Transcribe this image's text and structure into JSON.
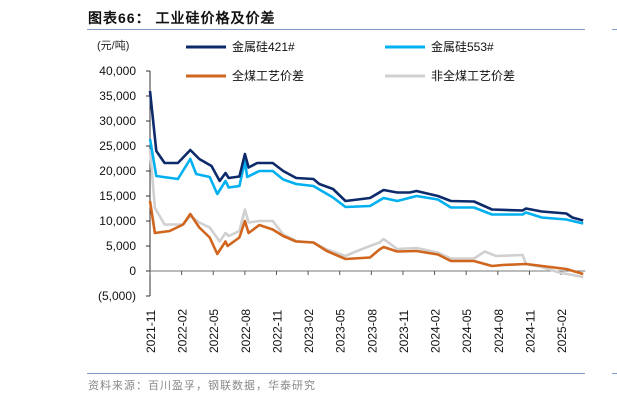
{
  "title": "图表66：  工业硅价格及价差",
  "source": "资料来源：百川盈孚，钢联数据，华泰研究",
  "chart_data": {
    "type": "line",
    "title": "工业硅价格及价差",
    "ylabel": "(元/吨)",
    "xlabel": "",
    "ylim": [
      -5000,
      40000
    ],
    "yticks": [
      -5000,
      0,
      5000,
      10000,
      15000,
      20000,
      25000,
      30000,
      35000,
      40000
    ],
    "ytick_labels": [
      "(5,000)",
      "0",
      "5,000",
      "10,000",
      "15,000",
      "20,000",
      "25,000",
      "30,000",
      "35,000",
      "40,000"
    ],
    "xlim": [
      "2021-11-01",
      "2025-04-10"
    ],
    "xtick_labels": [
      "2021-11",
      "2022-02",
      "2022-05",
      "2022-08",
      "2022-11",
      "2023-02",
      "2023-05",
      "2023-08",
      "2023-11",
      "2024-02",
      "2024-05",
      "2024-08",
      "2024-11",
      "2025-02"
    ],
    "grid": false,
    "legend": "top",
    "series": [
      {
        "name": "金属硅421#",
        "color": "#0d2a6b",
        "points": [
          [
            "2021-11-01",
            36000
          ],
          [
            "2021-11-19",
            24000
          ],
          [
            "2021-12-13",
            21600
          ],
          [
            "2022-01-21",
            21600
          ],
          [
            "2022-02-24",
            24200
          ],
          [
            "2022-03-22",
            22400
          ],
          [
            "2022-04-26",
            21000
          ],
          [
            "2022-05-20",
            18000
          ],
          [
            "2022-06-06",
            19600
          ],
          [
            "2022-06-15",
            18600
          ],
          [
            "2022-07-16",
            18900
          ],
          [
            "2022-08-01",
            23400
          ],
          [
            "2022-08-12",
            20700
          ],
          [
            "2022-09-06",
            21600
          ],
          [
            "2022-10-21",
            21600
          ],
          [
            "2022-11-20",
            20000
          ],
          [
            "2022-12-28",
            18600
          ],
          [
            "2023-02-15",
            18400
          ],
          [
            "2023-03-03",
            17400
          ],
          [
            "2023-04-12",
            16400
          ],
          [
            "2023-05-18",
            14000
          ],
          [
            "2023-07-28",
            14600
          ],
          [
            "2023-09-06",
            16200
          ],
          [
            "2023-10-15",
            15700
          ],
          [
            "2023-11-20",
            15700
          ],
          [
            "2023-12-10",
            16000
          ],
          [
            "2024-01-10",
            15500
          ],
          [
            "2024-02-10",
            15000
          ],
          [
            "2024-03-18",
            14000
          ],
          [
            "2024-05-24",
            13900
          ],
          [
            "2024-07-15",
            12300
          ],
          [
            "2024-10-12",
            12100
          ],
          [
            "2024-10-22",
            12500
          ],
          [
            "2024-12-06",
            11900
          ],
          [
            "2025-02-15",
            11500
          ],
          [
            "2025-03-03",
            10700
          ],
          [
            "2025-04-04",
            10100
          ]
        ]
      },
      {
        "name": "金属硅553#",
        "color": "#00b0f0",
        "points": [
          [
            "2021-11-01",
            26400
          ],
          [
            "2021-11-19",
            19000
          ],
          [
            "2022-01-21",
            18400
          ],
          [
            "2022-02-24",
            22400
          ],
          [
            "2022-03-13",
            19400
          ],
          [
            "2022-04-21",
            18800
          ],
          [
            "2022-05-13",
            15400
          ],
          [
            "2022-06-06",
            18000
          ],
          [
            "2022-06-15",
            16700
          ],
          [
            "2022-07-16",
            17000
          ],
          [
            "2022-08-01",
            22000
          ],
          [
            "2022-08-08",
            18800
          ],
          [
            "2022-09-12",
            20000
          ],
          [
            "2022-10-21",
            20000
          ],
          [
            "2022-11-20",
            18300
          ],
          [
            "2022-12-28",
            17400
          ],
          [
            "2023-02-15",
            17000
          ],
          [
            "2023-04-12",
            14700
          ],
          [
            "2023-05-18",
            12800
          ],
          [
            "2023-07-28",
            13000
          ],
          [
            "2023-09-06",
            14600
          ],
          [
            "2023-10-15",
            14000
          ],
          [
            "2023-12-10",
            15000
          ],
          [
            "2024-02-10",
            14300
          ],
          [
            "2024-03-18",
            12700
          ],
          [
            "2024-05-24",
            12700
          ],
          [
            "2024-07-15",
            11300
          ],
          [
            "2024-10-12",
            11300
          ],
          [
            "2024-10-22",
            11700
          ],
          [
            "2024-12-06",
            10700
          ],
          [
            "2025-02-15",
            10300
          ],
          [
            "2025-04-04",
            9500
          ]
        ]
      },
      {
        "name": "全煤工艺价差",
        "color": "#d0651d",
        "points": [
          [
            "2021-11-01",
            14000
          ],
          [
            "2021-11-15",
            7600
          ],
          [
            "2021-12-28",
            8000
          ],
          [
            "2022-02-05",
            9300
          ],
          [
            "2022-02-24",
            11400
          ],
          [
            "2022-03-22",
            8700
          ],
          [
            "2022-04-21",
            6700
          ],
          [
            "2022-05-13",
            3400
          ],
          [
            "2022-06-06",
            5900
          ],
          [
            "2022-06-12",
            5000
          ],
          [
            "2022-07-16",
            6700
          ],
          [
            "2022-08-01",
            10000
          ],
          [
            "2022-08-12",
            7600
          ],
          [
            "2022-09-12",
            9200
          ],
          [
            "2022-10-21",
            8300
          ],
          [
            "2022-11-20",
            7000
          ],
          [
            "2022-12-28",
            5900
          ],
          [
            "2023-02-15",
            5700
          ],
          [
            "2023-03-25",
            4000
          ],
          [
            "2023-05-18",
            2400
          ],
          [
            "2023-07-28",
            2700
          ],
          [
            "2023-08-25",
            4300
          ],
          [
            "2023-09-06",
            4800
          ],
          [
            "2023-10-15",
            3900
          ],
          [
            "2023-12-10",
            4000
          ],
          [
            "2024-02-10",
            3300
          ],
          [
            "2024-03-18",
            2000
          ],
          [
            "2024-05-24",
            2000
          ],
          [
            "2024-07-15",
            1000
          ],
          [
            "2024-08-15",
            1200
          ],
          [
            "2024-10-22",
            1400
          ],
          [
            "2025-02-15",
            400
          ],
          [
            "2025-04-04",
            -600
          ]
        ]
      },
      {
        "name": "非全煤工艺价差",
        "color": "#d0d0d0",
        "points": [
          [
            "2021-11-01",
            24400
          ],
          [
            "2021-11-15",
            12600
          ],
          [
            "2021-12-13",
            9300
          ],
          [
            "2022-02-05",
            9300
          ],
          [
            "2022-02-24",
            11000
          ],
          [
            "2022-03-22",
            9700
          ],
          [
            "2022-04-21",
            8700
          ],
          [
            "2022-05-20",
            5900
          ],
          [
            "2022-06-06",
            7600
          ],
          [
            "2022-06-15",
            7000
          ],
          [
            "2022-07-16",
            8000
          ],
          [
            "2022-08-01",
            12300
          ],
          [
            "2022-08-12",
            9700
          ],
          [
            "2022-09-12",
            10000
          ],
          [
            "2022-10-21",
            10000
          ],
          [
            "2022-11-20",
            7300
          ],
          [
            "2022-12-28",
            6000
          ],
          [
            "2023-02-15",
            5700
          ],
          [
            "2023-03-25",
            4300
          ],
          [
            "2023-05-18",
            3000
          ],
          [
            "2023-06-10",
            3700
          ],
          [
            "2023-07-28",
            5000
          ],
          [
            "2023-08-25",
            5700
          ],
          [
            "2023-09-06",
            6400
          ],
          [
            "2023-10-15",
            4400
          ],
          [
            "2023-12-10",
            4600
          ],
          [
            "2024-02-10",
            3700
          ],
          [
            "2024-03-18",
            2500
          ],
          [
            "2024-05-24",
            2500
          ],
          [
            "2024-06-24",
            3900
          ],
          [
            "2024-07-27",
            3000
          ],
          [
            "2024-10-12",
            3200
          ],
          [
            "2024-10-22",
            1400
          ],
          [
            "2024-12-06",
            800
          ],
          [
            "2025-01-27",
            -300
          ],
          [
            "2025-04-04",
            -1200
          ]
        ]
      }
    ]
  }
}
